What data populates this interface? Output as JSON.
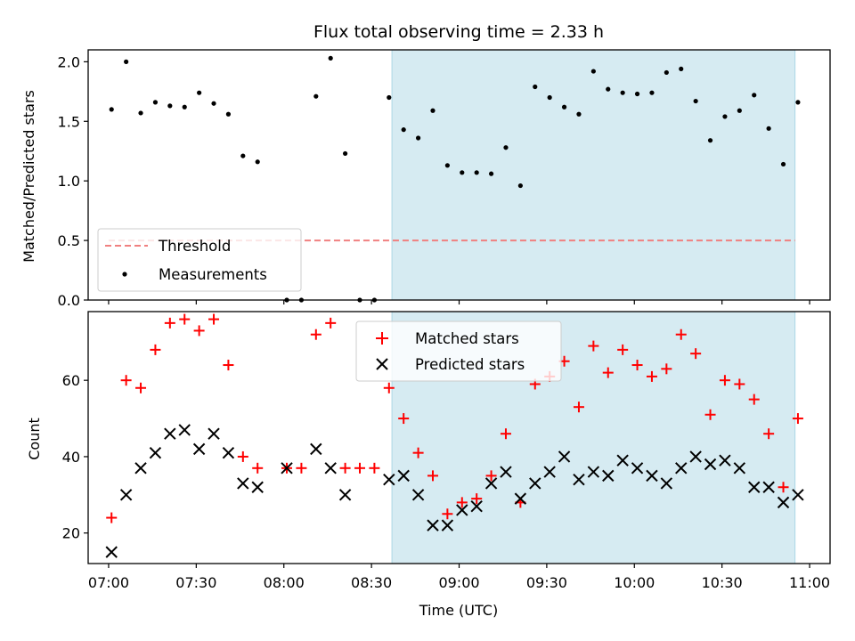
{
  "chart_data": [
    {
      "type": "scatter",
      "title": "Flux total observing time = 2.33 h",
      "ylabel": "Matched/Predicted stars",
      "ylim": [
        0,
        2.1
      ],
      "yticks": [
        0.0,
        0.5,
        1.0,
        1.5,
        2.0
      ],
      "ytick_labels": [
        "0.0",
        "0.5",
        "1.0",
        "1.5",
        "2.0"
      ],
      "grid": false,
      "legend_position": "lower-left",
      "shaded_interval": [
        "08:37",
        "10:55"
      ],
      "threshold": {
        "name": "Threshold",
        "value": 0.5,
        "color": "#f08080"
      },
      "series": [
        {
          "name": "Measurements",
          "marker": "dot",
          "color": "#000000",
          "x": [
            "07:01",
            "07:06",
            "07:11",
            "07:16",
            "07:21",
            "07:26",
            "07:31",
            "07:36",
            "07:41",
            "07:46",
            "07:51",
            "08:01",
            "08:06",
            "08:11",
            "08:16",
            "08:21",
            "08:26",
            "08:31",
            "08:36",
            "08:41",
            "08:46",
            "08:51",
            "08:56",
            "09:01",
            "09:06",
            "09:11",
            "09:16",
            "09:21",
            "09:26",
            "09:31",
            "09:36",
            "09:41",
            "09:46",
            "09:51",
            "09:56",
            "10:01",
            "10:06",
            "10:11",
            "10:16",
            "10:21",
            "10:26",
            "10:31",
            "10:36",
            "10:41",
            "10:46",
            "10:51",
            "10:56"
          ],
          "y": [
            1.6,
            2.0,
            1.57,
            1.66,
            1.63,
            1.62,
            1.74,
            1.65,
            1.56,
            1.21,
            1.16,
            0.0,
            0.0,
            1.71,
            2.03,
            1.23,
            0.0,
            0.0,
            1.7,
            1.43,
            1.36,
            1.59,
            1.13,
            1.07,
            1.07,
            1.06,
            1.28,
            0.96,
            1.79,
            1.7,
            1.62,
            1.56,
            1.92,
            1.77,
            1.74,
            1.73,
            1.74,
            1.91,
            1.94,
            1.67,
            1.34,
            1.54,
            1.59,
            1.72,
            1.44,
            1.14,
            1.66
          ]
        }
      ]
    },
    {
      "type": "scatter",
      "xlabel": "Time (UTC)",
      "ylabel": "Count",
      "ylim": [
        12,
        78
      ],
      "yticks": [
        20,
        40,
        60
      ],
      "ytick_labels": [
        "20",
        "40",
        "60"
      ],
      "xticks": [
        "07:00",
        "07:30",
        "08:00",
        "08:30",
        "09:00",
        "09:30",
        "10:00",
        "10:30",
        "11:00"
      ],
      "xlim": [
        "06:53",
        "11:07"
      ],
      "grid": false,
      "legend_position": "upper-center",
      "shaded_interval": [
        "08:37",
        "10:55"
      ],
      "series": [
        {
          "name": "Matched stars",
          "marker": "plus",
          "color": "#ff0000",
          "x": [
            "07:01",
            "07:06",
            "07:11",
            "07:16",
            "07:21",
            "07:26",
            "07:31",
            "07:36",
            "07:41",
            "07:46",
            "07:51",
            "08:01",
            "08:06",
            "08:11",
            "08:16",
            "08:21",
            "08:26",
            "08:31",
            "08:36",
            "08:41",
            "08:46",
            "08:51",
            "08:56",
            "09:01",
            "09:06",
            "09:11",
            "09:16",
            "09:21",
            "09:26",
            "09:31",
            "09:36",
            "09:41",
            "09:46",
            "09:51",
            "09:56",
            "10:01",
            "10:06",
            "10:11",
            "10:16",
            "10:21",
            "10:26",
            "10:31",
            "10:36",
            "10:41",
            "10:46",
            "10:51",
            "10:56"
          ],
          "y": [
            24,
            60,
            58,
            68,
            75,
            76,
            73,
            76,
            64,
            40,
            37,
            37,
            37,
            72,
            75,
            37,
            37,
            37,
            58,
            50,
            41,
            35,
            25,
            28,
            29,
            35,
            46,
            28,
            59,
            61,
            65,
            53,
            69,
            62,
            68,
            64,
            61,
            63,
            72,
            67,
            51,
            60,
            59,
            55,
            46,
            32,
            50
          ]
        },
        {
          "name": "Predicted stars",
          "marker": "x",
          "color": "#000000",
          "x": [
            "07:01",
            "07:06",
            "07:11",
            "07:16",
            "07:21",
            "07:26",
            "07:31",
            "07:36",
            "07:41",
            "07:46",
            "07:51",
            "08:01",
            "08:11",
            "08:16",
            "08:21",
            "08:36",
            "08:41",
            "08:46",
            "08:51",
            "08:56",
            "09:01",
            "09:06",
            "09:11",
            "09:16",
            "09:21",
            "09:26",
            "09:31",
            "09:36",
            "09:41",
            "09:46",
            "09:51",
            "09:56",
            "10:01",
            "10:06",
            "10:11",
            "10:16",
            "10:21",
            "10:26",
            "10:31",
            "10:36",
            "10:41",
            "10:46",
            "10:51",
            "10:56"
          ],
          "y": [
            15,
            30,
            37,
            41,
            46,
            47,
            42,
            46,
            41,
            33,
            32,
            37,
            42,
            37,
            30,
            34,
            35,
            30,
            22,
            22,
            26,
            27,
            33,
            36,
            29,
            33,
            36,
            40,
            34,
            36,
            35,
            39,
            37,
            35,
            33,
            37,
            40,
            38,
            39,
            37,
            32,
            32,
            28,
            30
          ]
        }
      ]
    }
  ]
}
